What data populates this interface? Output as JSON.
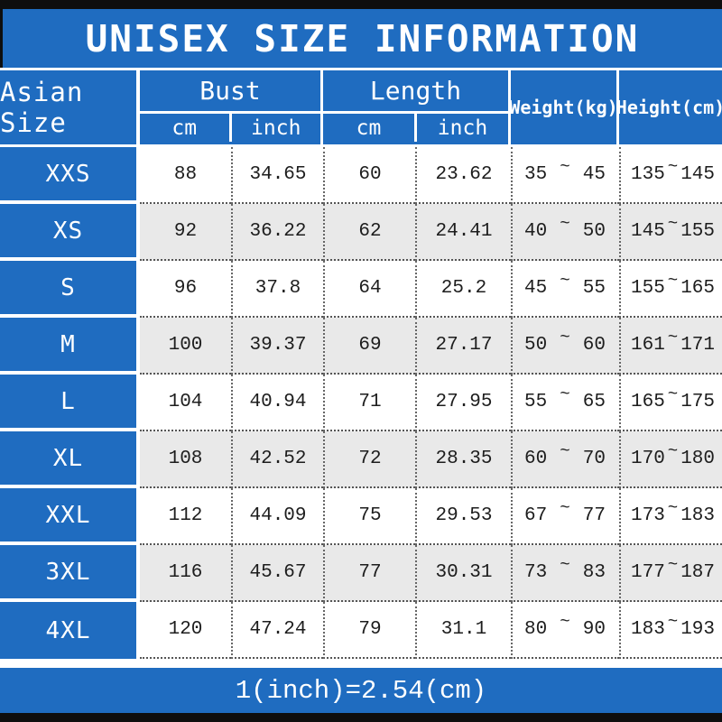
{
  "title": "UNISEX SIZE INFORMATION",
  "footer_note": "1(inch)=2.54(cm)",
  "colors": {
    "blue": "#1f6cc0",
    "black_bar": "#0e0e0e",
    "alt_row": "#e9e9e9",
    "data_text": "#1d1d1d",
    "header_text": "#ffffff"
  },
  "table": {
    "tilde": "~",
    "header": {
      "asian_size": "Asian Size",
      "bust": {
        "label": "Bust",
        "cm": "cm",
        "inch": "inch"
      },
      "length": {
        "label": "Length",
        "cm": "cm",
        "inch": "inch"
      },
      "weight_label": "Weight(kg)",
      "height_label": "Height(cm)"
    },
    "rows": [
      {
        "size": "XXS",
        "bust_cm": "88",
        "bust_inch": "34.65",
        "len_cm": "60",
        "len_inch": "23.62",
        "wt_min": "35",
        "wt_max": "45",
        "ht_min": "135",
        "ht_max": "145"
      },
      {
        "size": "XS",
        "bust_cm": "92",
        "bust_inch": "36.22",
        "len_cm": "62",
        "len_inch": "24.41",
        "wt_min": "40",
        "wt_max": "50",
        "ht_min": "145",
        "ht_max": "155"
      },
      {
        "size": "S",
        "bust_cm": "96",
        "bust_inch": "37.8",
        "len_cm": "64",
        "len_inch": "25.2",
        "wt_min": "45",
        "wt_max": "55",
        "ht_min": "155",
        "ht_max": "165"
      },
      {
        "size": "M",
        "bust_cm": "100",
        "bust_inch": "39.37",
        "len_cm": "69",
        "len_inch": "27.17",
        "wt_min": "50",
        "wt_max": "60",
        "ht_min": "161",
        "ht_max": "171"
      },
      {
        "size": "L",
        "bust_cm": "104",
        "bust_inch": "40.94",
        "len_cm": "71",
        "len_inch": "27.95",
        "wt_min": "55",
        "wt_max": "65",
        "ht_min": "165",
        "ht_max": "175"
      },
      {
        "size": "XL",
        "bust_cm": "108",
        "bust_inch": "42.52",
        "len_cm": "72",
        "len_inch": "28.35",
        "wt_min": "60",
        "wt_max": "70",
        "ht_min": "170",
        "ht_max": "180"
      },
      {
        "size": "XXL",
        "bust_cm": "112",
        "bust_inch": "44.09",
        "len_cm": "75",
        "len_inch": "29.53",
        "wt_min": "67",
        "wt_max": "77",
        "ht_min": "173",
        "ht_max": "183"
      },
      {
        "size": "3XL",
        "bust_cm": "116",
        "bust_inch": "45.67",
        "len_cm": "77",
        "len_inch": "30.31",
        "wt_min": "73",
        "wt_max": "83",
        "ht_min": "177",
        "ht_max": "187"
      },
      {
        "size": "4XL",
        "bust_cm": "120",
        "bust_inch": "47.24",
        "len_cm": "79",
        "len_inch": "31.1",
        "wt_min": "80",
        "wt_max": "90",
        "ht_min": "183",
        "ht_max": "193"
      }
    ]
  },
  "chart_data": {
    "type": "table",
    "title": "UNISEX SIZE INFORMATION",
    "columns": [
      "Asian Size",
      "Bust cm",
      "Bust inch",
      "Length cm",
      "Length inch",
      "Weight(kg)",
      "Height(cm)"
    ],
    "rows": [
      [
        "XXS",
        88,
        34.65,
        60,
        23.62,
        "35~45",
        "135~145"
      ],
      [
        "XS",
        92,
        36.22,
        62,
        24.41,
        "40~50",
        "145~155"
      ],
      [
        "S",
        96,
        37.8,
        64,
        25.2,
        "45~55",
        "155~165"
      ],
      [
        "M",
        100,
        39.37,
        69,
        27.17,
        "50~60",
        "161~171"
      ],
      [
        "L",
        104,
        40.94,
        71,
        27.95,
        "55~65",
        "165~175"
      ],
      [
        "XL",
        108,
        42.52,
        72,
        28.35,
        "60~70",
        "170~180"
      ],
      [
        "XXL",
        112,
        44.09,
        75,
        29.53,
        "67~77",
        "173~183"
      ],
      [
        "3XL",
        116,
        45.67,
        77,
        30.31,
        "73~83",
        "177~187"
      ],
      [
        "4XL",
        120,
        47.24,
        79,
        31.1,
        "80~90",
        "183~193"
      ]
    ],
    "note": "1(inch)=2.54(cm)"
  }
}
